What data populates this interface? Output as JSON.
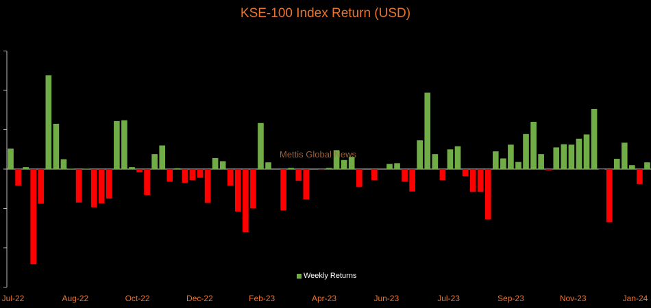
{
  "chart_data": {
    "type": "bar",
    "title": "KSE-100 Index Return (USD)",
    "watermark": "Mettis Global News",
    "legend": {
      "label": "Weekly Returns",
      "position": "bottom"
    },
    "ylim": [
      -3,
      3
    ],
    "grid": false,
    "colors": {
      "positive": "#70ad47",
      "negative": "#ff0000"
    },
    "x_tick_labels": [
      "Jul-22",
      "Aug-22",
      "Oct-22",
      "Dec-22",
      "Feb-23",
      "Apr-23",
      "Jun-23",
      "Jul-23",
      "Sep-23",
      "Nov-23",
      "Jan-24"
    ],
    "series": [
      {
        "values": [
          0.52,
          -0.42,
          0.05,
          -2.42,
          -0.88,
          2.38,
          1.15,
          0.25,
          0.01,
          -0.85,
          0.01,
          -0.97,
          -0.87,
          -0.75,
          1.22,
          1.24,
          0.05,
          -0.08,
          -0.66,
          0.38,
          0.6,
          -0.32,
          0.02,
          -0.35,
          -0.28,
          -0.22,
          -0.86,
          0.28,
          0.2,
          -0.42,
          -1.08,
          -1.6,
          -1.0,
          1.17,
          0.17,
          0,
          -1.05,
          0.03,
          -0.3,
          -0.77,
          0,
          -0.02,
          0.03,
          0.48,
          0.23,
          0.31,
          -0.45,
          0,
          -0.28,
          0,
          0.13,
          0.15,
          -0.32,
          -0.57,
          0.73,
          1.94,
          0.38,
          -0.28,
          0.5,
          0.58,
          -0.18,
          -0.58,
          -0.58,
          -1.28,
          0.45,
          0.27,
          0.62,
          0.18,
          0.89,
          1.2,
          0.38,
          -0.03,
          0.55,
          0.63,
          0.62,
          0.77,
          0.88,
          1.53,
          -0.01,
          -1.35,
          0.26,
          0.67,
          0.1,
          -0.38,
          0.17
        ]
      }
    ]
  }
}
